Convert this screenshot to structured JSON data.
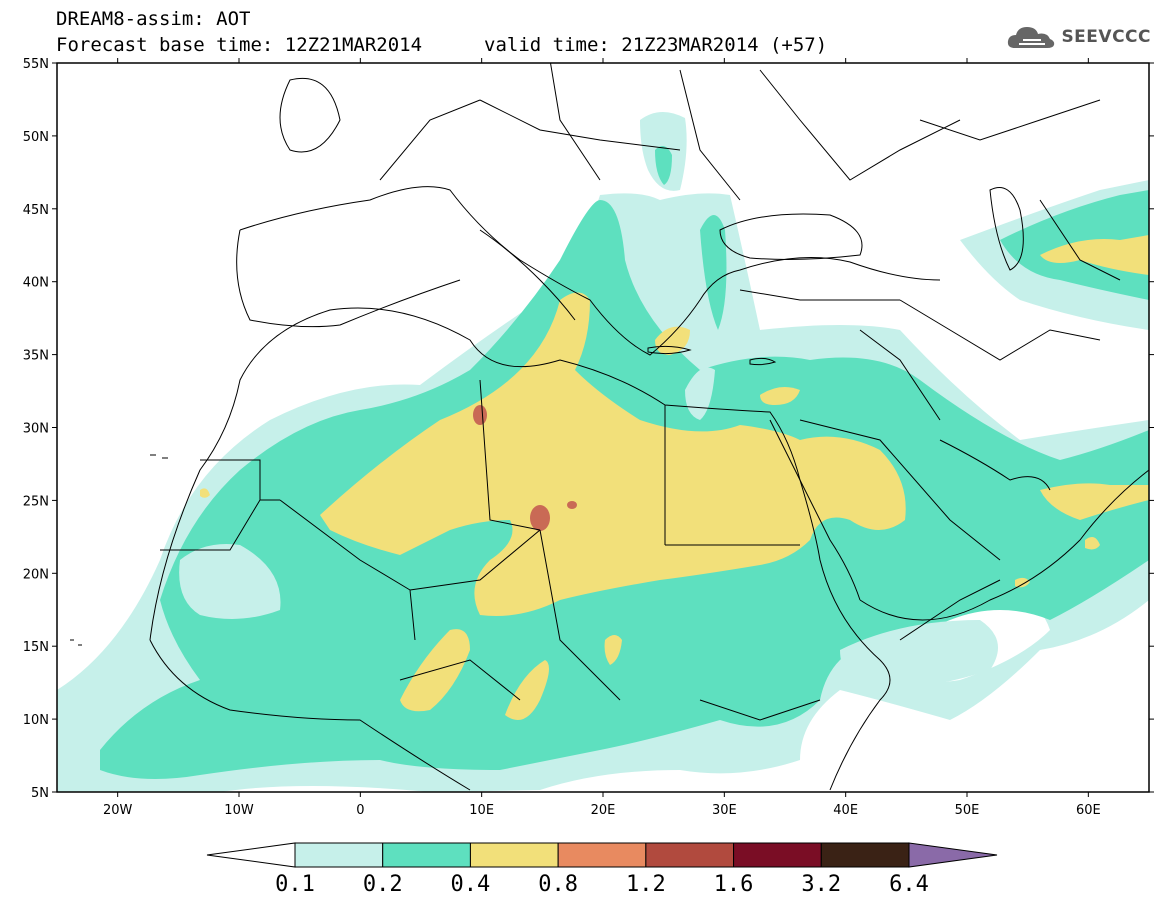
{
  "header": {
    "line1": "DREAM8-assim: AOT",
    "base_time": "Forecast base time: 12Z21MAR2014",
    "valid_time": "valid time: 21Z23MAR2014 (+57)"
  },
  "logo": {
    "text": "SEEVCCC",
    "icon": "cloud-icon"
  },
  "map": {
    "lon_range": [
      -25,
      65
    ],
    "lat_range": [
      5,
      55
    ],
    "lat_ticks": [
      "55N",
      "50N",
      "45N",
      "40N",
      "35N",
      "30N",
      "25N",
      "20N",
      "15N",
      "10N",
      "5N"
    ],
    "lon_ticks": [
      "20W",
      "10W",
      "0",
      "10E",
      "20E",
      "30E",
      "40E",
      "50E",
      "60E"
    ]
  },
  "colorbar": {
    "labels": [
      "0.1",
      "0.2",
      "0.4",
      "0.8",
      "1.2",
      "1.6",
      "3.2",
      "6.4"
    ],
    "colors": [
      "#ffffff",
      "#c6f0ea",
      "#5ee0bf",
      "#f2e07a",
      "#e88a60",
      "#b14a3e",
      "#7a0d25",
      "#3a2215",
      "#8a6aa8"
    ]
  },
  "colors": {
    "level_01": "#c6f0ea",
    "level_02": "#5ee0bf",
    "level_04": "#f2e07a",
    "level_08": "#e88a60",
    "level_12": "#c96a55"
  }
}
